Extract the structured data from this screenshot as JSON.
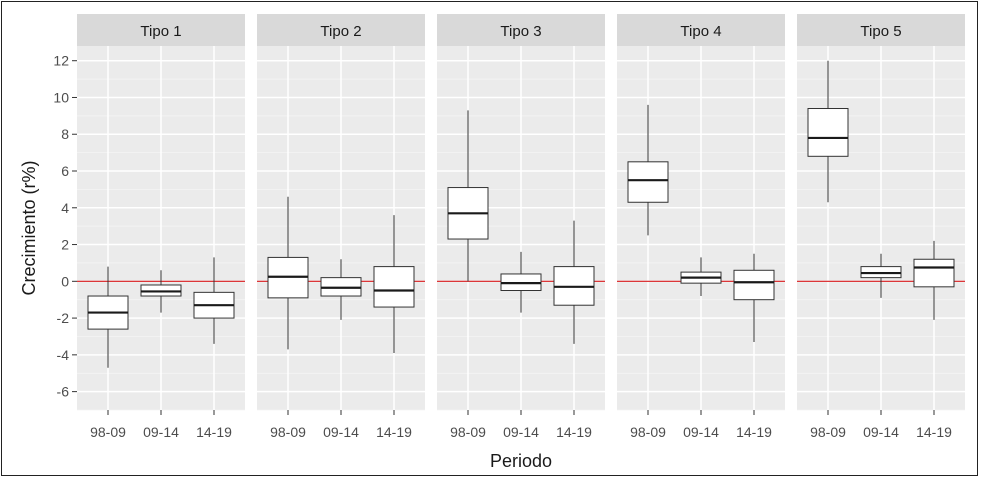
{
  "chart_data": {
    "type": "boxplot",
    "xlabel": "Periodo",
    "ylabel": "Crecimiento (r%)",
    "ylim": [
      -7,
      12.8
    ],
    "yticks": [
      -6,
      -4,
      -2,
      0,
      2,
      4,
      6,
      8,
      10,
      12
    ],
    "reference_line": {
      "y": 0,
      "color": "#d7191c"
    },
    "categories": [
      "98-09",
      "09-14",
      "14-19"
    ],
    "panel_background": "#ebebeb",
    "strip_background": "#d9d9d9",
    "grid": true,
    "facets": [
      {
        "title": "Tipo 1",
        "boxes": [
          {
            "x": "98-09",
            "min": -4.7,
            "q1": -2.6,
            "median": -1.7,
            "q3": -0.8,
            "max": 0.8
          },
          {
            "x": "09-14",
            "min": -1.7,
            "q1": -0.8,
            "median": -0.55,
            "q3": -0.2,
            "max": 0.6
          },
          {
            "x": "14-19",
            "min": -3.4,
            "q1": -2.0,
            "median": -1.3,
            "q3": -0.6,
            "max": 1.3
          }
        ]
      },
      {
        "title": "Tipo 2",
        "boxes": [
          {
            "x": "98-09",
            "min": -3.7,
            "q1": -0.9,
            "median": 0.25,
            "q3": 1.3,
            "max": 4.6
          },
          {
            "x": "09-14",
            "min": -2.1,
            "q1": -0.8,
            "median": -0.35,
            "q3": 0.2,
            "max": 1.2
          },
          {
            "x": "14-19",
            "min": -3.9,
            "q1": -1.4,
            "median": -0.5,
            "q3": 0.8,
            "max": 3.6
          }
        ]
      },
      {
        "title": "Tipo 3",
        "boxes": [
          {
            "x": "98-09",
            "min": 0.0,
            "q1": 2.3,
            "median": 3.7,
            "q3": 5.1,
            "max": 9.3
          },
          {
            "x": "09-14",
            "min": -1.7,
            "q1": -0.5,
            "median": -0.1,
            "q3": 0.4,
            "max": 1.6
          },
          {
            "x": "14-19",
            "min": -3.4,
            "q1": -1.3,
            "median": -0.3,
            "q3": 0.8,
            "max": 3.3
          }
        ]
      },
      {
        "title": "Tipo 4",
        "boxes": [
          {
            "x": "98-09",
            "min": 2.5,
            "q1": 4.3,
            "median": 5.5,
            "q3": 6.5,
            "max": 9.6
          },
          {
            "x": "09-14",
            "min": -0.8,
            "q1": -0.1,
            "median": 0.2,
            "q3": 0.5,
            "max": 1.3
          },
          {
            "x": "14-19",
            "min": -3.3,
            "q1": -1.0,
            "median": -0.05,
            "q3": 0.6,
            "max": 1.5
          }
        ]
      },
      {
        "title": "Tipo 5",
        "boxes": [
          {
            "x": "98-09",
            "min": 4.3,
            "q1": 6.8,
            "median": 7.8,
            "q3": 9.4,
            "max": 12.0
          },
          {
            "x": "09-14",
            "min": -0.9,
            "q1": 0.2,
            "median": 0.45,
            "q3": 0.8,
            "max": 1.5
          },
          {
            "x": "14-19",
            "min": -2.1,
            "q1": -0.3,
            "median": 0.75,
            "q3": 1.2,
            "max": 2.2
          }
        ]
      }
    ]
  }
}
